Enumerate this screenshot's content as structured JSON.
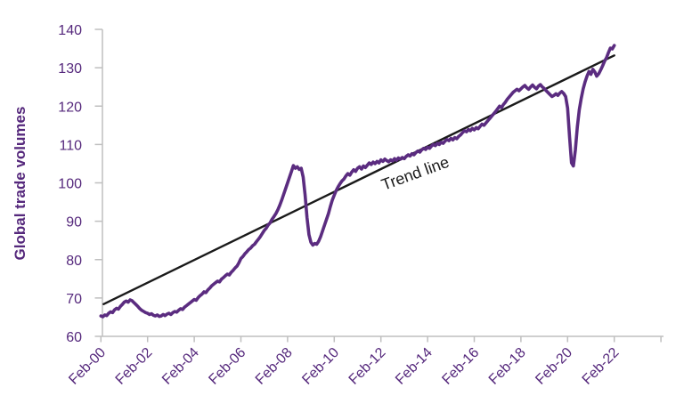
{
  "figure": {
    "y_axis_title": "Global trade volumes",
    "trend_label": "Trend line",
    "colors": {
      "series_purple": "#5B2C80",
      "text_purple": "#55287C",
      "trend_black": "#1A1A1A",
      "axis_gray": "#BFBFBF"
    }
  },
  "chart_data": {
    "type": "line",
    "title": "",
    "xlabel": "",
    "ylabel": "Global trade volumes",
    "ylim": [
      60,
      140
    ],
    "y_ticks": [
      60,
      70,
      80,
      90,
      100,
      110,
      120,
      130,
      140
    ],
    "x_tick_labels": [
      "Feb-00",
      "Feb-02",
      "Feb-04",
      "Feb-06",
      "Feb-08",
      "Feb-10",
      "Feb-12",
      "Feb-14",
      "Feb-16",
      "Feb-18",
      "Feb-20",
      "Feb-22"
    ],
    "frequency": "monthly",
    "x_start": "Feb-2000",
    "x_end": "Feb-2022",
    "grid": false,
    "legend_position": "none",
    "annotations": [
      {
        "text": "Trend line",
        "rotation_deg": -20
      }
    ],
    "series": [
      {
        "name": "Global trade volumes",
        "color": "#5B2C80",
        "values": [
          65.3,
          65.1,
          65.6,
          65.4,
          66.0,
          66.4,
          66.2,
          66.9,
          67.3,
          67.1,
          67.8,
          68.3,
          68.9,
          69.2,
          68.9,
          69.5,
          69.3,
          68.8,
          68.3,
          67.8,
          67.2,
          66.8,
          66.5,
          66.2,
          66.0,
          65.7,
          65.9,
          65.5,
          65.3,
          65.6,
          65.2,
          65.3,
          65.7,
          65.4,
          65.8,
          66.0,
          65.7,
          66.2,
          66.5,
          66.3,
          66.8,
          67.2,
          67.0,
          67.6,
          68.0,
          68.4,
          68.8,
          69.2,
          69.6,
          69.4,
          70.1,
          70.6,
          71.0,
          71.6,
          71.4,
          72.1,
          72.6,
          73.2,
          73.6,
          74.0,
          74.4,
          74.2,
          74.9,
          75.3,
          75.8,
          76.2,
          76.0,
          76.7,
          77.2,
          77.8,
          78.3,
          79.2,
          80.3,
          80.8,
          81.5,
          82.0,
          82.6,
          83.0,
          83.6,
          84.0,
          84.7,
          85.3,
          86.0,
          86.8,
          87.6,
          88.2,
          89.0,
          89.6,
          90.5,
          91.2,
          92.0,
          93.0,
          94.2,
          95.5,
          97.0,
          98.5,
          100.0,
          101.5,
          103.0,
          104.5,
          103.8,
          104.2,
          103.5,
          103.8,
          101.5,
          97.0,
          91.0,
          86.5,
          84.5,
          83.8,
          84.2,
          84.0,
          84.8,
          86.0,
          87.5,
          89.0,
          90.5,
          92.0,
          93.8,
          95.5,
          96.8,
          98.0,
          99.0,
          99.8,
          100.5,
          101.0,
          101.8,
          102.4,
          102.0,
          102.8,
          103.4,
          103.0,
          103.8,
          104.2,
          103.6,
          104.4,
          104.0,
          104.6,
          105.2,
          104.8,
          105.4,
          105.0,
          105.6,
          105.2,
          106.0,
          105.6,
          106.2,
          105.8,
          105.5,
          106.0,
          105.7,
          106.3,
          105.9,
          106.5,
          106.2,
          106.6,
          106.3,
          106.9,
          107.3,
          107.0,
          107.6,
          107.3,
          107.9,
          108.3,
          108.0,
          108.6,
          109.0,
          108.7,
          109.3,
          109.0,
          109.6,
          110.0,
          109.7,
          110.3,
          110.0,
          110.6,
          110.3,
          110.9,
          111.3,
          111.0,
          111.6,
          111.2,
          111.8,
          111.5,
          112.1,
          112.5,
          113.1,
          113.6,
          113.3,
          113.9,
          113.6,
          114.2,
          113.8,
          114.4,
          114.1,
          114.7,
          115.3,
          115.0,
          115.6,
          116.2,
          116.8,
          117.4,
          118.0,
          118.6,
          119.3,
          120.0,
          119.6,
          120.4,
          121.0,
          121.8,
          122.4,
          123.0,
          123.6,
          124.0,
          124.4,
          124.0,
          124.5,
          125.0,
          125.4,
          124.8,
          124.4,
          125.0,
          125.5,
          124.9,
          124.5,
          125.2,
          125.6,
          125.0,
          124.6,
          124.0,
          123.5,
          123.0,
          122.5,
          122.8,
          123.2,
          122.8,
          123.4,
          123.8,
          123.3,
          122.5,
          119.5,
          112.0,
          105.2,
          104.4,
          108.5,
          114.5,
          119.0,
          122.0,
          124.5,
          126.3,
          127.8,
          129.0,
          128.3,
          129.6,
          128.9,
          127.8,
          128.4,
          129.4,
          130.5,
          131.7,
          132.6,
          133.9,
          135.1,
          134.9,
          135.8
        ]
      },
      {
        "name": "Trend line",
        "color": "#1A1A1A",
        "shape": "straight",
        "start_value": 68.4,
        "end_value": 133.2
      }
    ]
  }
}
